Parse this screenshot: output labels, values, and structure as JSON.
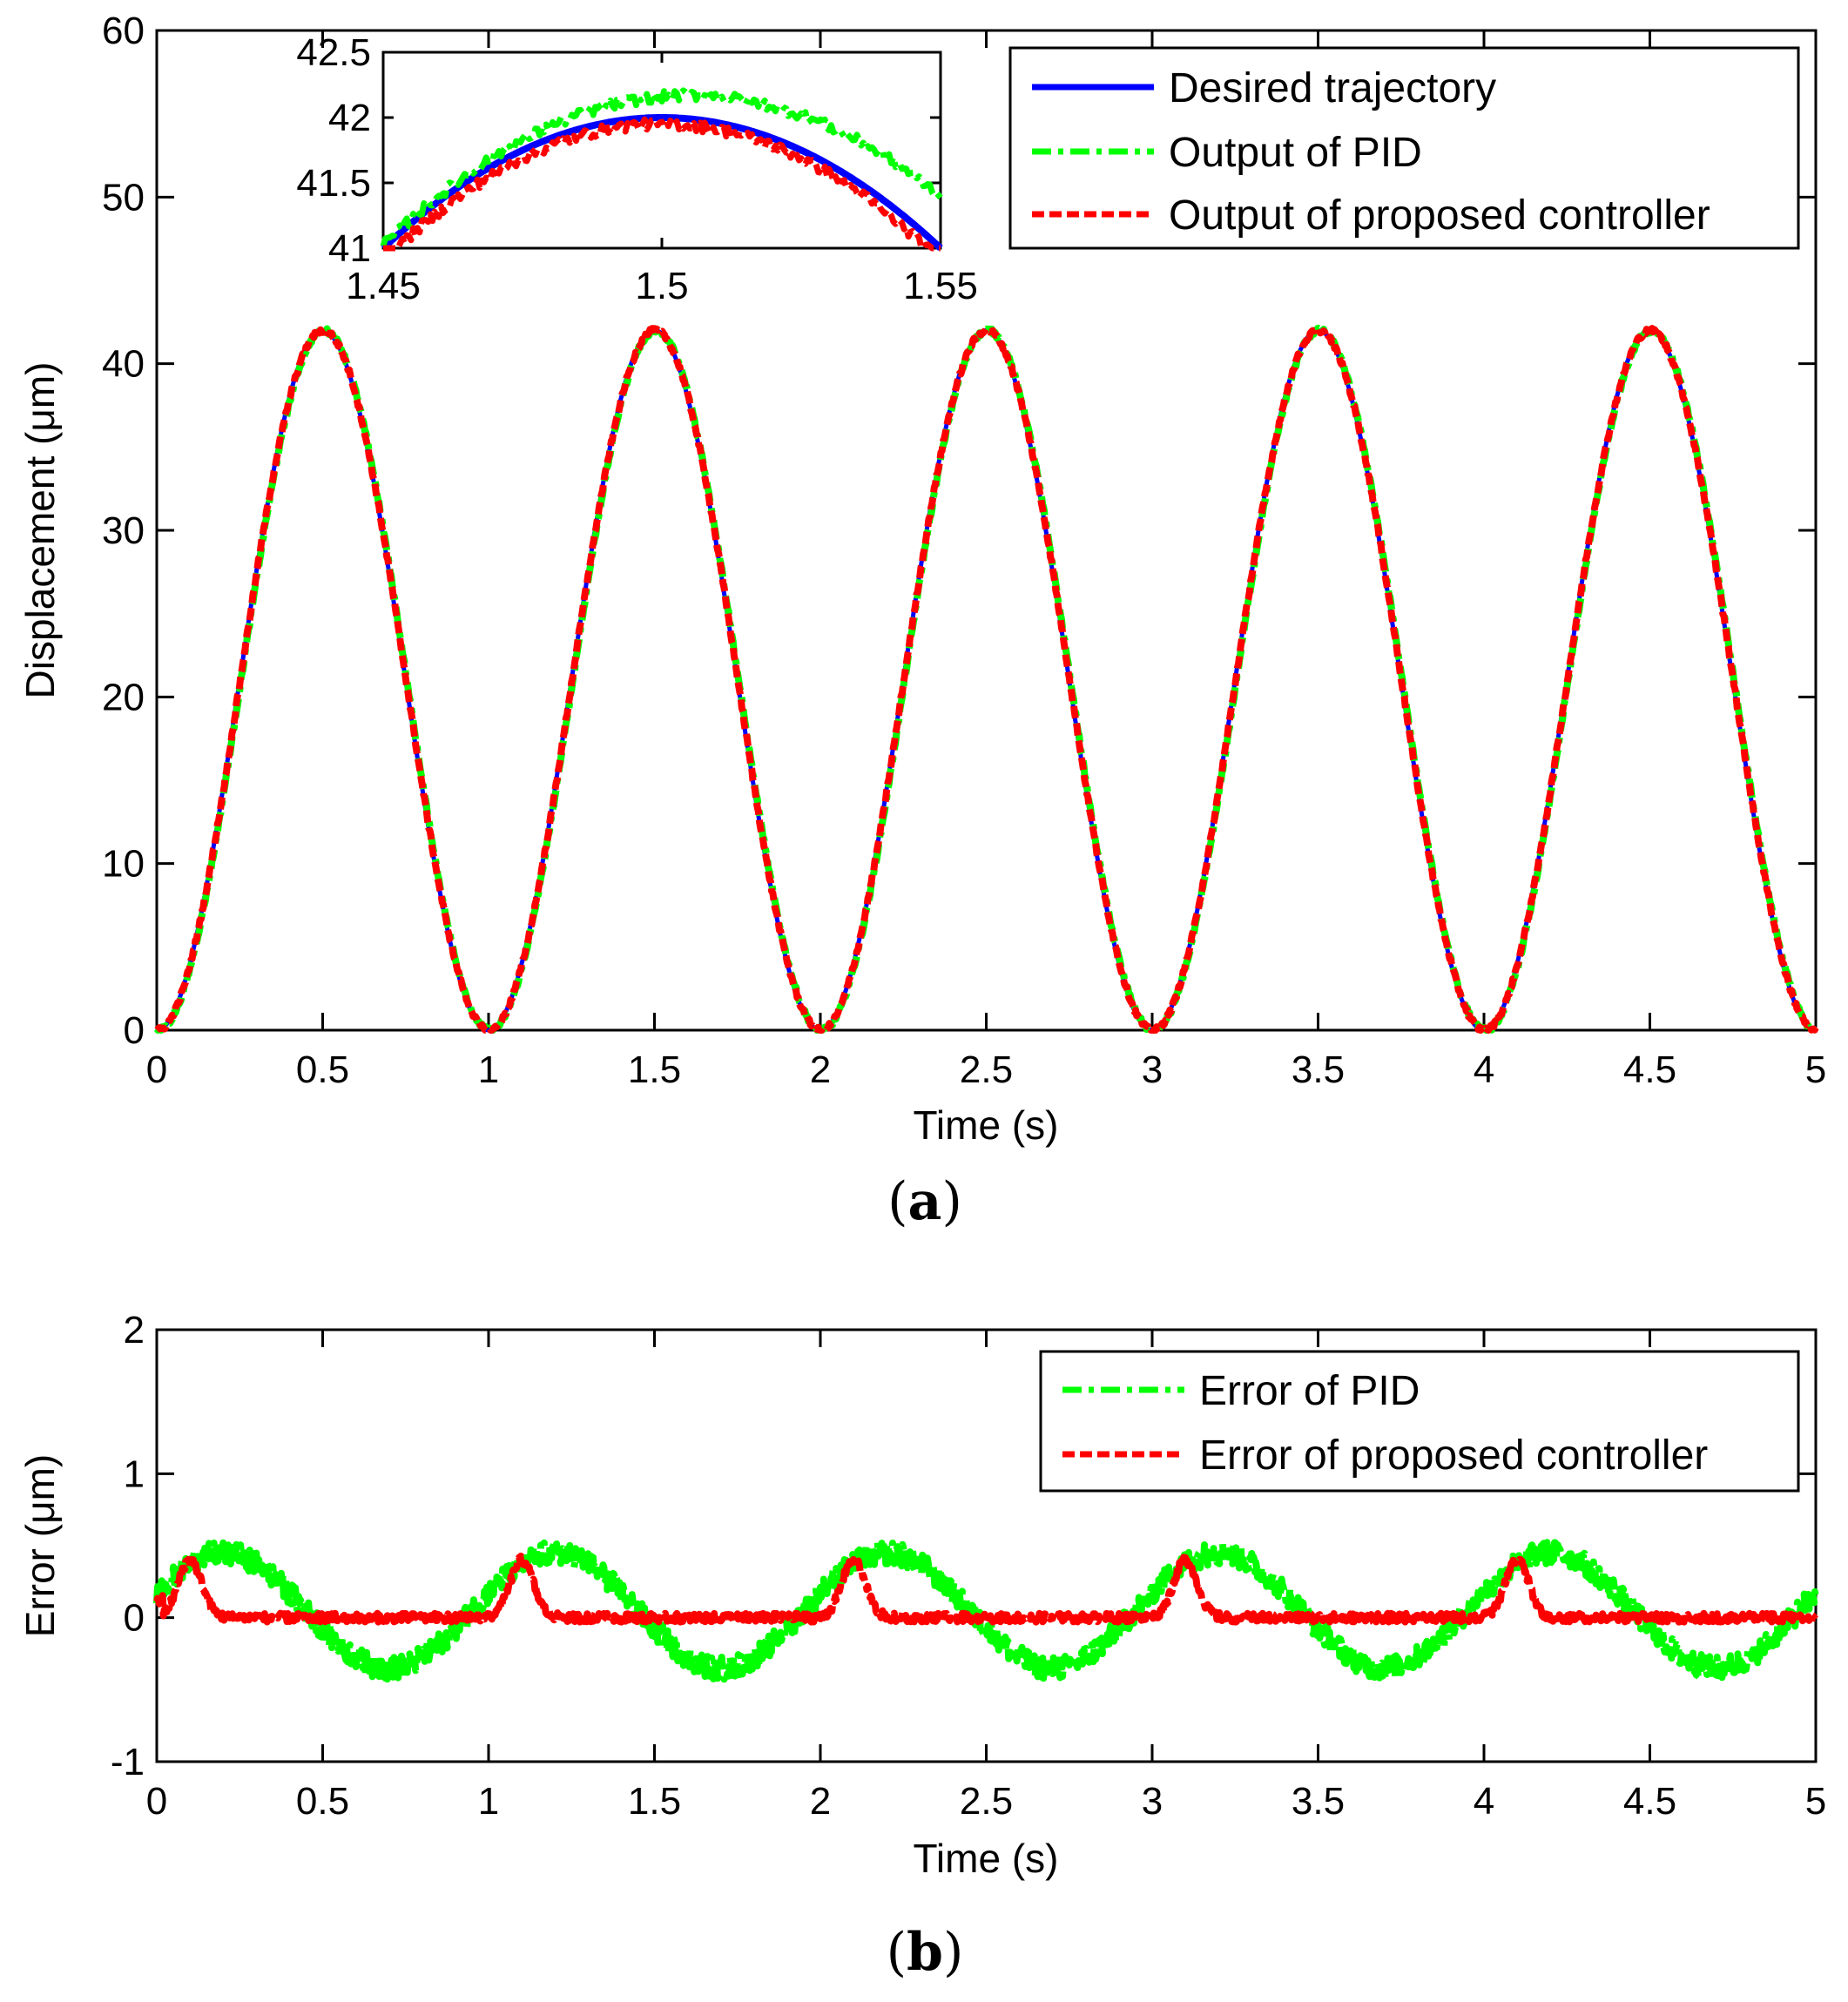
{
  "chart_data": [
    {
      "id": "a",
      "panel_label": "a",
      "type": "line",
      "xlabel": "Time (s)",
      "ylabel": "Displacement (μm)",
      "xlim": [
        0,
        5
      ],
      "ylim": [
        0,
        60
      ],
      "xticks": [
        0,
        0.5,
        1,
        1.5,
        2,
        2.5,
        3,
        3.5,
        4,
        4.5,
        5
      ],
      "xtick_labels": [
        "0",
        "0.5",
        "1",
        "1.5",
        "2",
        "2.5",
        "3",
        "3.5",
        "4",
        "4.5",
        "5"
      ],
      "yticks": [
        0,
        10,
        20,
        30,
        40,
        50,
        60
      ],
      "ytick_labels": [
        "0",
        "10",
        "20",
        "30",
        "40",
        "50",
        "60"
      ],
      "grid": false,
      "legend_position": "top-right",
      "series": [
        {
          "name": "Desired trajectory",
          "color": "#0000ff",
          "style": "solid",
          "model": "desired",
          "amplitude": 42,
          "period": 1.0,
          "noise": 0
        },
        {
          "name": "Output of PID",
          "color": "#00ff00",
          "style": "dashdot",
          "model": "lag",
          "amplitude": 42,
          "period": 1.0,
          "noise": 0.05
        },
        {
          "name": "Output of proposed controller",
          "color": "#ff0000",
          "style": "dashed",
          "model": "tracked",
          "amplitude": 42,
          "period": 1.0,
          "noise": 0.05
        }
      ],
      "inset": {
        "xlim": [
          1.45,
          1.55
        ],
        "ylim": [
          41,
          42.5
        ],
        "xticks": [
          1.45,
          1.5,
          1.55
        ],
        "xtick_labels": [
          "1.45",
          "1.5",
          "1.55"
        ],
        "yticks": [
          41,
          41.5,
          42,
          42.5
        ],
        "ytick_labels": [
          "41",
          "41.5",
          "42",
          "42.5"
        ],
        "series": [
          {
            "name": "Desired trajectory",
            "color": "#0000ff",
            "peak": 42.0,
            "curvature": 0.2,
            "shift": 0.0,
            "noise": 0
          },
          {
            "name": "Output of PID",
            "color": "#00ff00",
            "peak": 42.17,
            "curvature": 0.19,
            "shift": 0.005,
            "noise": 0.02
          },
          {
            "name": "Output of proposed controller",
            "color": "#ff0000",
            "peak": 41.95,
            "curvature": 0.21,
            "shift": 0.0,
            "noise": 0.02
          }
        ]
      }
    },
    {
      "id": "b",
      "panel_label": "b",
      "type": "line",
      "xlabel": "Time (s)",
      "ylabel": "Error (μm)",
      "xlim": [
        0,
        5
      ],
      "ylim": [
        -1,
        2
      ],
      "xticks": [
        0,
        0.5,
        1,
        1.5,
        2,
        2.5,
        3,
        3.5,
        4,
        4.5,
        5
      ],
      "xtick_labels": [
        "0",
        "0.5",
        "1",
        "1.5",
        "2",
        "2.5",
        "3",
        "3.5",
        "4",
        "4.5",
        "5"
      ],
      "yticks": [
        -1,
        0,
        1,
        2
      ],
      "ytick_labels": [
        "-1",
        "0",
        "1",
        "2"
      ],
      "grid": false,
      "legend_position": "top-right",
      "series": [
        {
          "name": "Error of PID",
          "color": "#00ff00",
          "style": "dashdot",
          "model": "pid_error",
          "peak": 0.45,
          "trough": -0.35,
          "noise": 0.04
        },
        {
          "name": "Error of proposed controller",
          "color": "#ff0000",
          "style": "dashed",
          "model": "ctrl_error",
          "peak": 0.4,
          "trough": 0.0,
          "noise": 0.02
        }
      ]
    }
  ]
}
